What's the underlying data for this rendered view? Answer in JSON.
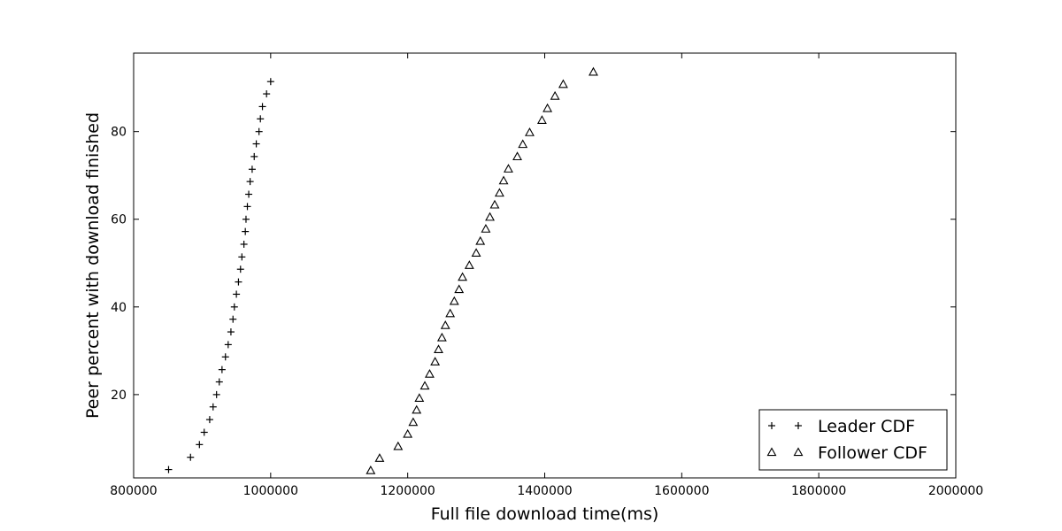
{
  "chart_data": {
    "type": "scatter",
    "title": "",
    "xlabel": "Full file download time(ms)",
    "ylabel": "Peer percent with download finished",
    "xlim": [
      800000,
      2000000
    ],
    "ylim": [
      1.0,
      97.9
    ],
    "xticks": [
      800000,
      1000000,
      1200000,
      1400000,
      1600000,
      1800000,
      2000000
    ],
    "xtick_labels": [
      "800000",
      "1000000",
      "1200000",
      "1400000",
      "1600000",
      "1800000",
      "2000000"
    ],
    "yticks": [
      20,
      40,
      60,
      80
    ],
    "ytick_labels": [
      "20",
      "40",
      "60",
      "80"
    ],
    "grid": false,
    "legend_position": "bottom-right",
    "series": [
      {
        "name": "Leader CDF",
        "marker": "plus",
        "x": [
          851000,
          883000,
          896000,
          903000,
          911000,
          916000,
          921000,
          925000,
          929000,
          934000,
          938000,
          942000,
          945000,
          947000,
          950000,
          953000,
          956000,
          958000,
          961000,
          963000,
          964000,
          966000,
          968000,
          970000,
          973000,
          976000,
          979000,
          983000,
          985000,
          988000,
          994000,
          1000000
        ],
        "y": [
          2.9,
          5.7,
          8.6,
          11.4,
          14.3,
          17.2,
          20.0,
          22.9,
          25.7,
          28.6,
          31.4,
          34.3,
          37.2,
          40.0,
          42.9,
          45.7,
          48.6,
          51.4,
          54.3,
          57.2,
          60.0,
          62.9,
          65.7,
          68.6,
          71.4,
          74.3,
          77.2,
          80.0,
          82.9,
          85.7,
          88.6,
          91.4
        ]
      },
      {
        "name": "Follower CDF",
        "marker": "triangle",
        "x": [
          1146000,
          1159000,
          1186000,
          1200000,
          1208000,
          1213000,
          1217000,
          1225000,
          1232000,
          1240000,
          1245000,
          1250000,
          1255000,
          1262000,
          1268000,
          1275000,
          1280000,
          1290000,
          1300000,
          1306000,
          1314000,
          1320000,
          1327000,
          1334000,
          1340000,
          1347000,
          1360000,
          1368000,
          1378000,
          1396000,
          1404000,
          1415000,
          1427000,
          1471000
        ],
        "y": [
          2.7,
          5.5,
          8.2,
          11.0,
          13.7,
          16.5,
          19.2,
          22.0,
          24.7,
          27.5,
          30.3,
          33.0,
          35.8,
          38.5,
          41.3,
          44.0,
          46.8,
          49.5,
          52.3,
          55.0,
          57.8,
          60.5,
          63.3,
          66.0,
          68.8,
          71.5,
          74.3,
          77.1,
          79.8,
          82.6,
          85.3,
          88.1,
          90.8,
          93.6
        ]
      }
    ]
  }
}
